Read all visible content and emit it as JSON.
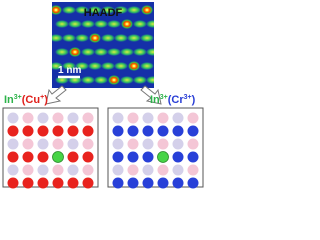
{
  "image": {
    "title": "HAADF",
    "scale_bar": "1 nm"
  },
  "panels": [
    {
      "label": [
        {
          "text": "In",
          "color": "#2db34a"
        },
        {
          "text": "3+",
          "sup": true,
          "color": "#2db34a"
        },
        {
          "text": "(Cu",
          "color": "#e0201b"
        },
        {
          "text": "+",
          "sup": true,
          "color": "#e0201b"
        },
        {
          "text": ")",
          "color": "#e0201b"
        }
      ],
      "dopant_color": "#e8231e"
    },
    {
      "label": [
        {
          "text": "In",
          "color": "#2db34a"
        },
        {
          "text": "3+",
          "sup": true,
          "color": "#2db34a"
        },
        {
          "text": "(Cr",
          "color": "#2a3fd6"
        },
        {
          "text": "3+",
          "sup": true,
          "color": "#2a3fd6"
        },
        {
          "text": ")",
          "color": "#2a3fd6"
        }
      ],
      "dopant_color": "#2840d8"
    }
  ]
}
